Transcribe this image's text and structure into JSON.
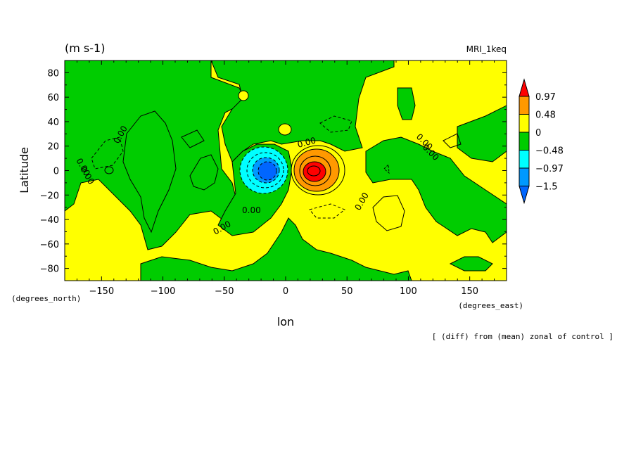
{
  "chart_data": {
    "type": "heatmap",
    "title": "(m s-1)",
    "label_right": "MRI_1keq",
    "xlabel": "lon",
    "ylabel": "Latitude",
    "x_units": "(degrees_east)",
    "y_units": "(degrees_north)",
    "note": "[ (diff) from (mean) zonal of control ]",
    "xlim": [
      -180,
      180
    ],
    "ylim": [
      -90,
      90
    ],
    "x_ticks": [
      -150,
      -100,
      -50,
      0,
      50,
      100,
      150
    ],
    "y_ticks": [
      80,
      60,
      40,
      20,
      0,
      -20,
      -40,
      -60,
      -80
    ],
    "x_tick_labels": [
      "−150",
      "−100",
      "−50",
      "0",
      "50",
      "100",
      "150"
    ],
    "y_tick_labels": [
      "80",
      "60",
      "40",
      "20",
      "0",
      "−20",
      "−40",
      "−60",
      "−80"
    ],
    "colorbar": {
      "levels": [
        0.97,
        0.48,
        0,
        -0.48,
        -0.97,
        -1.5
      ],
      "labels": [
        "0.97",
        "0.48",
        "0",
        "−0.48",
        "−0.97",
        "−1.5"
      ],
      "colors": [
        "#ff0000",
        "#ff9900",
        "#ffff00",
        "#00cc00",
        "#00ffff",
        "#0099ff",
        "#0066ff"
      ]
    },
    "contour_labels": [
      "0.00",
      "0.00",
      "0.00",
      "0.00",
      "0.00",
      "0.00",
      "0.00",
      "0.00"
    ],
    "features": [
      {
        "name": "negative-center",
        "lon": -15,
        "lat": 0,
        "value": -1.5
      },
      {
        "name": "positive-center",
        "lon": 20,
        "lat": 0,
        "value": 0.97
      }
    ],
    "grid": false,
    "legend": "right"
  }
}
